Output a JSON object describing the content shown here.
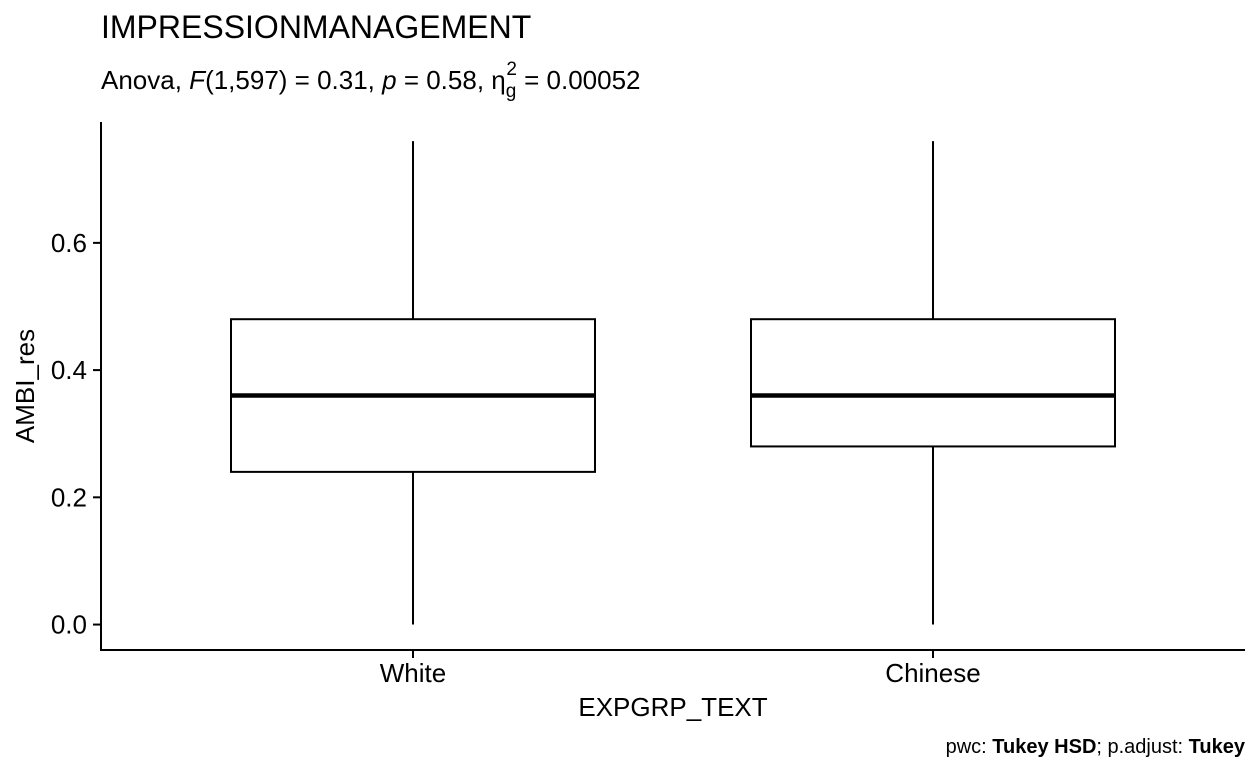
{
  "chart_data": {
    "type": "boxplot",
    "title": "IMPRESSIONMANAGEMENT",
    "subtitle": {
      "prefix": "Anova, ",
      "f_symbol": "F",
      "f_args": "(1,597) = 0.31, ",
      "p_symbol": "p",
      "p_value": " = 0.58, ",
      "eta_symbol": "η",
      "eta_sub": "g",
      "eta_sup": "2",
      "eta_value": " = 0.00052"
    },
    "xlabel": "EXPGRP_TEXT",
    "ylabel": "AMBI_res",
    "ylim": [
      -0.04,
      0.79
    ],
    "yticks": [
      0.0,
      0.2,
      0.4,
      0.6
    ],
    "ytick_labels": [
      "0.0",
      "0.2",
      "0.4",
      "0.6"
    ],
    "categories": [
      "White",
      "Chinese"
    ],
    "boxes": [
      {
        "category": "White",
        "min": 0.0,
        "q1": 0.24,
        "median": 0.36,
        "q3": 0.48,
        "max": 0.76
      },
      {
        "category": "Chinese",
        "min": 0.0,
        "q1": 0.28,
        "median": 0.36,
        "q3": 0.48,
        "max": 0.76
      }
    ],
    "grid": false,
    "caption": {
      "pwc_label": "pwc: ",
      "pwc_value": "Tukey HSD",
      "sep": "; p.adjust: ",
      "adjust_value": "Tukey"
    }
  },
  "colors": {
    "box_fill": "#ffffff",
    "stroke": "#000000"
  }
}
